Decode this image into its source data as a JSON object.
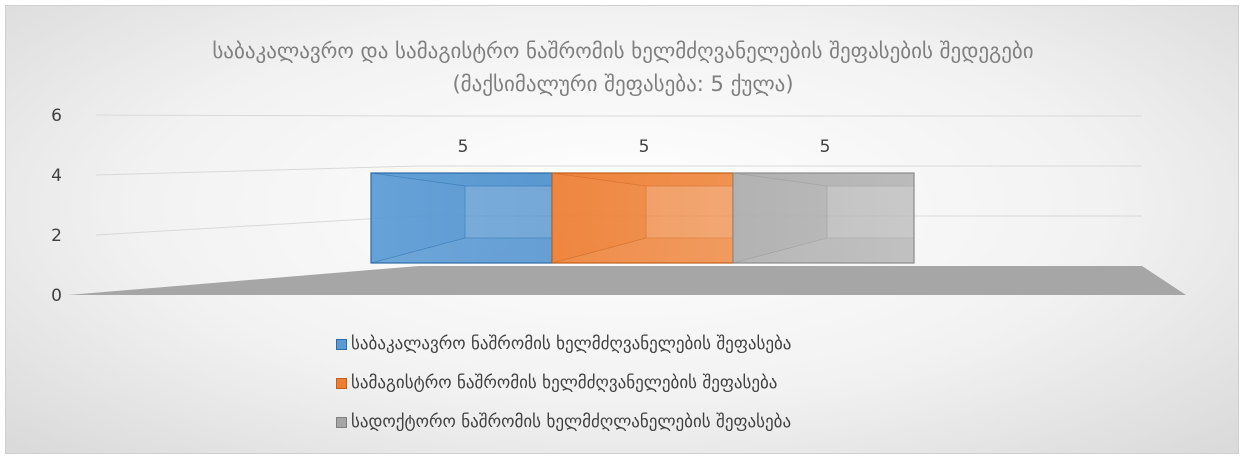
{
  "chart_data": {
    "type": "bar",
    "title_lines": [
      "საბაკალავრო და სამაგისტრო ნაშრომის ხელმძღვანელების შეფასების შედეგები",
      "(მაქსიმალური შეფასება: 5 ქულა)"
    ],
    "categories": [
      ""
    ],
    "series": [
      {
        "name": "საბაკალავრო ნაშრომის ხელმძღვანელების შეფასება",
        "values": [
          5
        ],
        "color": "#5B9BD5"
      },
      {
        "name": "სამაგისტრო ნაშრომის ხელმძღვანელების შეფასება",
        "values": [
          5
        ],
        "color": "#ED7D31"
      },
      {
        "name": "სადოქტორო ნაშრომის ხელმძღლანელების შეფასება",
        "values": [
          5
        ],
        "color": "#A5A5A5"
      }
    ],
    "ylim": [
      0,
      6
    ],
    "yticks": [
      "0",
      "2",
      "4",
      "6"
    ],
    "data_labels": [
      "5",
      "5",
      "5"
    ],
    "grid": true,
    "legend_position": "bottom",
    "style": "3d-bar"
  }
}
